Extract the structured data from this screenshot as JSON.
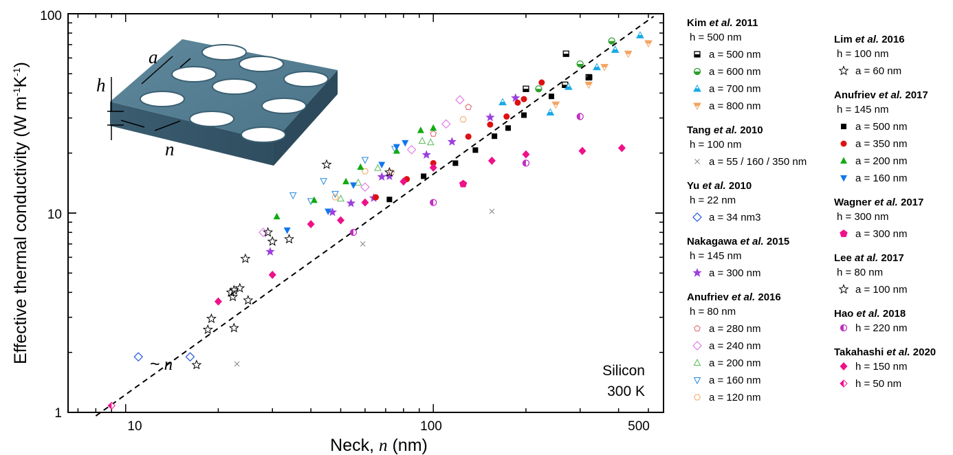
{
  "chart_data": {
    "type": "scatter",
    "x_scale": "log",
    "y_scale": "log",
    "xlim": [
      6.5,
      560
    ],
    "ylim": [
      1,
      100
    ],
    "xlabel_prefix": "Neck, ",
    "xlabel_var": "n",
    "xlabel_suffix": " (nm)",
    "ylabel": "Effective thermal conductivity (W m",
    "ylabel_sup1": "-1",
    "ylabel_mid": "K",
    "ylabel_sup2": "-1",
    "ylabel_end": ")",
    "x_ticks": [
      {
        "value": 10,
        "label": "10"
      },
      {
        "value": 100,
        "label": "100"
      },
      {
        "value": 500,
        "label": "500"
      }
    ],
    "y_ticks": [
      {
        "value": 1,
        "label": "1"
      },
      {
        "value": 10,
        "label": "10"
      },
      {
        "value": 100,
        "label": "100"
      }
    ],
    "trend_line": {
      "label_tilde": "~",
      "label_var": "n",
      "x": [
        8,
        520
      ],
      "y": [
        0.96,
        97
      ]
    },
    "annotation": {
      "line1": "Silicon",
      "line2": "300 K"
    },
    "inset_labels": {
      "a": "a",
      "h": "h",
      "n": "n"
    },
    "legend_left": [
      {
        "author": "Kim",
        "etal": "et al.",
        "year": "2011",
        "sub": "h = 500 nm",
        "entries": [
          "a = 500 nm",
          "a = 600 nm",
          "a = 700 nm",
          "a = 800 nm"
        ]
      },
      {
        "author": "Tang",
        "etal": "et al.",
        "year": "2010",
        "sub": "h = 100 nm",
        "entries": [
          "a = 55 / 160 / 350 nm"
        ]
      },
      {
        "author": "Yu",
        "etal": "et al.",
        "year": "2010",
        "sub": "h = 22 nm",
        "entries": [
          "a = 34 nm3"
        ]
      },
      {
        "author": "Nakagawa",
        "etal": "et al.",
        "year": "2015",
        "sub": "h = 145 nm",
        "entries": [
          "a = 300 nm"
        ]
      },
      {
        "author": "Anufriev",
        "etal": "et al.",
        "year": "2016",
        "sub": "h = 80 nm",
        "entries": [
          "a = 280 nm",
          "a = 240 nm",
          "a = 200 nm",
          "a = 160 nm",
          "a = 120 nm"
        ]
      }
    ],
    "legend_right": [
      {
        "author": "Lim",
        "etal": "et al.",
        "year": "2016",
        "sub": "h = 100 nm",
        "entries": [
          "a = 60 nm"
        ]
      },
      {
        "author": "Anufriev",
        "etal": "et al.",
        "year": "2017",
        "sub": "h = 145 nm",
        "entries": [
          "a = 500 nm",
          "a = 350 nm",
          "a = 200 nm",
          "a = 160 nm"
        ]
      },
      {
        "author": "Wagner",
        "etal": "et al.",
        "year": "2017",
        "sub": "h = 300 nm",
        "entries": [
          "a = 300 nm"
        ]
      },
      {
        "author": "Lee",
        "etal": "at al.",
        "year": "2017",
        "sub": "h = 80 nm",
        "entries": [
          "a = 100 nm"
        ]
      },
      {
        "author": "Hao",
        "etal": "et al.",
        "year": "2018",
        "sub": "",
        "entries": [
          "h = 220 nm"
        ]
      },
      {
        "author": "Takahashi",
        "etal": "et al.",
        "year": "2020",
        "sub": "",
        "entries": [
          "h = 150 nm",
          "h = 50 nm"
        ]
      }
    ],
    "series": [
      {
        "name": "a = 500 nm",
        "group": "Kim et al. 2011",
        "marker": "half-square",
        "color": "#000000",
        "points": [
          [
            270,
            63
          ],
          [
            320,
            48
          ],
          [
            200,
            42
          ],
          [
            268,
            44
          ]
        ]
      },
      {
        "name": "a = 600 nm",
        "group": "Kim et al. 2011",
        "marker": "half-circle",
        "color": "#2ca02c",
        "points": [
          [
            380,
            73
          ],
          [
            300,
            56
          ],
          [
            220,
            42
          ]
        ]
      },
      {
        "name": "a = 700 nm",
        "group": "Kim et al. 2011",
        "marker": "half-triangle-up",
        "color": "#17a9e6",
        "points": [
          [
            470,
            78
          ],
          [
            390,
            66
          ],
          [
            340,
            54
          ],
          [
            240,
            32
          ],
          [
            168,
            36
          ],
          [
            275,
            43
          ]
        ]
      },
      {
        "name": "a = 800 nm",
        "group": "Kim et al. 2011",
        "marker": "half-triangle-down",
        "color": "#f4a460",
        "points": [
          [
            500,
            71
          ],
          [
            430,
            63
          ],
          [
            360,
            54
          ],
          [
            320,
            44
          ],
          [
            250,
            35
          ]
        ]
      },
      {
        "name": "a = 55 / 160 / 350 nm",
        "group": "Tang et al. 2010",
        "marker": "x",
        "color": "#888888",
        "points": [
          [
            23,
            1.75
          ],
          [
            59,
            7.0
          ],
          [
            155,
            10.2
          ]
        ]
      },
      {
        "name": "a = 34 nm3",
        "group": "Yu et al. 2010",
        "marker": "diamond-open",
        "color": "#2255dd",
        "points": [
          [
            11,
            1.9
          ],
          [
            16.2,
            1.9
          ]
        ]
      },
      {
        "name": "a = 300 nm",
        "group": "Nakagawa et al. 2015",
        "marker": "star-filled",
        "color": "#9b3fe0",
        "points": [
          [
            29.5,
            6.4
          ],
          [
            47,
            10.1
          ],
          [
            54,
            11.2
          ],
          [
            64,
            11.9
          ],
          [
            68,
            15.2
          ],
          [
            72,
            15.3
          ],
          [
            95,
            19.6
          ],
          [
            115,
            22.8
          ],
          [
            153,
            30.2
          ],
          [
            185,
            37.8
          ]
        ]
      },
      {
        "name": "a = 280 nm",
        "group": "Anufriev et al. 2016",
        "marker": "pentagon-open",
        "color": "#e06060",
        "points": [
          [
            100,
            25
          ],
          [
            130,
            34
          ]
        ]
      },
      {
        "name": "a = 240 nm",
        "group": "Anufriev et al. 2016",
        "marker": "diamond-open",
        "color": "#e07de8",
        "points": [
          [
            28,
            8.0
          ],
          [
            60,
            13.5
          ],
          [
            85,
            20.8
          ],
          [
            110,
            28
          ],
          [
            122,
            37
          ]
        ]
      },
      {
        "name": "a = 200 nm",
        "group": "Anufriev et al. 2016",
        "marker": "triangle-up-open",
        "color": "#55bb55",
        "points": [
          [
            50,
            11.8
          ],
          [
            57,
            14.2
          ],
          [
            66,
            16.8
          ],
          [
            92,
            23
          ],
          [
            98,
            22.6
          ]
        ]
      },
      {
        "name": "a = 160 nm",
        "group": "Anufriev et al. 2016",
        "marker": "triangle-down-open",
        "color": "#2288dd",
        "points": [
          [
            35,
            12.3
          ],
          [
            40,
            11.5
          ],
          [
            44,
            14.5
          ],
          [
            48,
            12.5
          ],
          [
            60,
            18.5
          ],
          [
            75,
            21
          ]
        ]
      },
      {
        "name": "a = 120 nm",
        "group": "Anufriev et al. 2016",
        "marker": "hexagon-open",
        "color": "#f4a460",
        "points": [
          [
            48,
            12.0
          ],
          [
            60,
            16.2
          ],
          [
            73,
            16.0
          ],
          [
            125,
            29.5
          ]
        ]
      },
      {
        "name": "a = 60 nm",
        "group": "Lim et al. 2016",
        "marker": "star-open",
        "color": "#000000",
        "points": [
          [
            17,
            1.73
          ],
          [
            18.5,
            2.6
          ],
          [
            19,
            2.95
          ],
          [
            22.5,
            2.65
          ],
          [
            25,
            3.65
          ],
          [
            22,
            4.0
          ],
          [
            22.5,
            4.1
          ],
          [
            23.5,
            4.2
          ],
          [
            24.5,
            5.9
          ],
          [
            29,
            8.0
          ],
          [
            30,
            7.2
          ],
          [
            34,
            7.4
          ],
          [
            45,
            17.5
          ],
          [
            72,
            16.0
          ]
        ]
      },
      {
        "name": "a = 500 nm",
        "group": "Anufriev et al. 2017",
        "marker": "square-filled",
        "color": "#000000",
        "points": [
          [
            72,
            11.7
          ],
          [
            93,
            15.3
          ],
          [
            118,
            17.8
          ],
          [
            137,
            20.7
          ],
          [
            158,
            24.3
          ],
          [
            175,
            26.7
          ],
          [
            197,
            31
          ],
          [
            242,
            38.5
          ],
          [
            322,
            48
          ]
        ]
      },
      {
        "name": "a = 350 nm",
        "group": "Anufriev et al. 2017",
        "marker": "circle-filled",
        "color": "#dd1111",
        "points": [
          [
            65,
            12.0
          ],
          [
            82,
            14.8
          ],
          [
            100,
            17.8
          ],
          [
            130,
            24.2
          ],
          [
            153,
            27.8
          ],
          [
            173,
            30.5
          ],
          [
            188,
            35.8
          ],
          [
            197,
            37.3
          ],
          [
            225,
            45.2
          ]
        ]
      },
      {
        "name": "a = 200 nm",
        "group": "Anufriev et al. 2017",
        "marker": "triangle-up-filled",
        "color": "#11aa11",
        "points": [
          [
            31,
            9.6
          ],
          [
            41,
            11.6
          ],
          [
            52,
            14.4
          ],
          [
            58,
            17
          ],
          [
            76,
            20.5
          ],
          [
            91,
            26
          ],
          [
            100,
            26.7
          ]
        ]
      },
      {
        "name": "a = 160 nm",
        "group": "Anufriev et al. 2017",
        "marker": "triangle-down-filled",
        "color": "#1177ee",
        "points": [
          [
            33.5,
            8.2
          ],
          [
            45.5,
            10.2
          ],
          [
            55,
            13.8
          ],
          [
            68,
            17.5
          ],
          [
            76,
            21.5
          ],
          [
            81,
            22.5
          ]
        ]
      },
      {
        "name": "a = 300 nm",
        "group": "Wagner et al. 2017",
        "marker": "pentagon-filled",
        "color": "#ee1188",
        "points": [
          [
            125,
            14
          ]
        ]
      },
      {
        "name": "a = 100 nm",
        "group": "Lee at al. 2017",
        "marker": "star-open",
        "color": "#000000",
        "points": [
          [
            22.3,
            3.8
          ]
        ]
      },
      {
        "name": "h = 220 nm",
        "group": "Hao et al. 2018",
        "marker": "half-circle-left",
        "color": "#c030c0",
        "points": [
          [
            55,
            8.0
          ],
          [
            100,
            11.3
          ],
          [
            200,
            17.8
          ],
          [
            300,
            30.5
          ]
        ]
      },
      {
        "name": "h = 150 nm",
        "group": "Takahashi et al. 2020",
        "marker": "diamond-filled",
        "color": "#ee1188",
        "points": [
          [
            20,
            3.6
          ],
          [
            30,
            4.9
          ],
          [
            40,
            8.8
          ],
          [
            50,
            9.2
          ],
          [
            60,
            11.3
          ],
          [
            80,
            14.4
          ],
          [
            100,
            16.9
          ],
          [
            155,
            18.3
          ],
          [
            200,
            19.7
          ],
          [
            305,
            20.5
          ],
          [
            410,
            21.2
          ]
        ]
      },
      {
        "name": "h = 50 nm",
        "group": "Takahashi et al. 2020",
        "marker": "half-diamond",
        "color": "#ee1188",
        "points": [
          [
            9,
            1.08
          ]
        ]
      }
    ]
  }
}
